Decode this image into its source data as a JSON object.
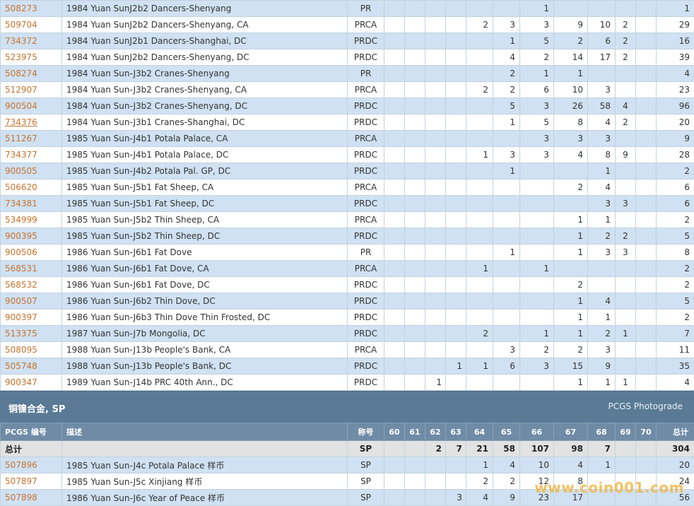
{
  "rows_top": [
    {
      "id": "508273",
      "desc": "1984 Yuan SunJ2b2 Dancers-Shenyang",
      "des": "PR",
      "c60": "",
      "c61": "",
      "c62": "",
      "c63": "",
      "c64": "",
      "c65": "",
      "c66": "1",
      "c67": "",
      "c68": "",
      "c69": "",
      "c70": "",
      "tot": "1"
    },
    {
      "id": "509704",
      "desc": "1984 Yuan SunJ2b2 Dancers-Shenyang, CA",
      "des": "PRCA",
      "c60": "",
      "c61": "",
      "c62": "",
      "c63": "",
      "c64": "2",
      "c65": "3",
      "c66": "3",
      "c67": "9",
      "c68": "10",
      "c69": "2",
      "c70": "",
      "tot": "29"
    },
    {
      "id": "734372",
      "desc": "1984 Yuan SunJ2b1 Dancers-Shanghai, DC",
      "des": "PRDC",
      "c60": "",
      "c61": "",
      "c62": "",
      "c63": "",
      "c64": "",
      "c65": "1",
      "c66": "5",
      "c67": "2",
      "c68": "6",
      "c69": "2",
      "c70": "",
      "tot": "16"
    },
    {
      "id": "523975",
      "desc": "1984 Yuan SunJ2b2 Dancers-Shenyang, DC",
      "des": "PRDC",
      "c60": "",
      "c61": "",
      "c62": "",
      "c63": "",
      "c64": "",
      "c65": "4",
      "c66": "2",
      "c67": "14",
      "c68": "17",
      "c69": "2",
      "c70": "",
      "tot": "39"
    },
    {
      "id": "508274",
      "desc": "1984 Yuan Sun-J3b2 Cranes-Shenyang",
      "des": "PR",
      "c60": "",
      "c61": "",
      "c62": "",
      "c63": "",
      "c64": "",
      "c65": "2",
      "c66": "1",
      "c67": "1",
      "c68": "",
      "c69": "",
      "c70": "",
      "tot": "4"
    },
    {
      "id": "512907",
      "desc": "1984 Yuan Sun-J3b2 Cranes-Shenyang, CA",
      "des": "PRCA",
      "c60": "",
      "c61": "",
      "c62": "",
      "c63": "",
      "c64": "2",
      "c65": "2",
      "c66": "6",
      "c67": "10",
      "c68": "3",
      "c69": "",
      "c70": "",
      "tot": "23"
    },
    {
      "id": "900504",
      "desc": "1984 Yuan Sun-J3b2 Cranes-Shenyang, DC",
      "des": "PRDC",
      "c60": "",
      "c61": "",
      "c62": "",
      "c63": "",
      "c64": "",
      "c65": "5",
      "c66": "3",
      "c67": "26",
      "c68": "58",
      "c69": "4",
      "c70": "",
      "tot": "96"
    },
    {
      "id": "734376",
      "desc": "1984 Yuan Sun-J3b1 Cranes-Shanghai, DC",
      "des": "PRDC",
      "c60": "",
      "c61": "",
      "c62": "",
      "c63": "",
      "c64": "",
      "c65": "1",
      "c66": "5",
      "c67": "8",
      "c68": "4",
      "c69": "2",
      "c70": "",
      "tot": "20",
      "underline": true
    },
    {
      "id": "511267",
      "desc": "1985 Yuan Sun-J4b1 Potala Palace, CA",
      "des": "PRCA",
      "c60": "",
      "c61": "",
      "c62": "",
      "c63": "",
      "c64": "",
      "c65": "",
      "c66": "3",
      "c67": "3",
      "c68": "3",
      "c69": "",
      "c70": "",
      "tot": "9"
    },
    {
      "id": "734377",
      "desc": "1985 Yuan Sun-J4b1 Potala Palace, DC",
      "des": "PRDC",
      "c60": "",
      "c61": "",
      "c62": "",
      "c63": "",
      "c64": "1",
      "c65": "3",
      "c66": "3",
      "c67": "4",
      "c68": "8",
      "c69": "9",
      "c70": "",
      "tot": "28"
    },
    {
      "id": "900505",
      "desc": "1985 Yuan Sun-J4b2 Potala Pal. GP, DC",
      "des": "PRDC",
      "c60": "",
      "c61": "",
      "c62": "",
      "c63": "",
      "c64": "",
      "c65": "1",
      "c66": "",
      "c67": "",
      "c68": "1",
      "c69": "",
      "c70": "",
      "tot": "2"
    },
    {
      "id": "506620",
      "desc": "1985 Yuan Sun-J5b1 Fat Sheep, CA",
      "des": "PRCA",
      "c60": "",
      "c61": "",
      "c62": "",
      "c63": "",
      "c64": "",
      "c65": "",
      "c66": "",
      "c67": "2",
      "c68": "4",
      "c69": "",
      "c70": "",
      "tot": "6"
    },
    {
      "id": "734381",
      "desc": "1985 Yuan Sun-J5b1 Fat Sheep, DC",
      "des": "PRDC",
      "c60": "",
      "c61": "",
      "c62": "",
      "c63": "",
      "c64": "",
      "c65": "",
      "c66": "",
      "c67": "",
      "c68": "3",
      "c69": "3",
      "c70": "",
      "tot": "6"
    },
    {
      "id": "534999",
      "desc": "1985 Yuan Sun-J5b2 Thin Sheep, CA",
      "des": "PRCA",
      "c60": "",
      "c61": "",
      "c62": "",
      "c63": "",
      "c64": "",
      "c65": "",
      "c66": "",
      "c67": "1",
      "c68": "1",
      "c69": "",
      "c70": "",
      "tot": "2"
    },
    {
      "id": "900395",
      "desc": "1985 Yuan Sun-J5b2 Thin Sheep, DC",
      "des": "PRDC",
      "c60": "",
      "c61": "",
      "c62": "",
      "c63": "",
      "c64": "",
      "c65": "",
      "c66": "",
      "c67": "1",
      "c68": "2",
      "c69": "2",
      "c70": "",
      "tot": "5"
    },
    {
      "id": "900506",
      "desc": "1986 Yuan Sun-J6b1 Fat Dove",
      "des": "PR",
      "c60": "",
      "c61": "",
      "c62": "",
      "c63": "",
      "c64": "",
      "c65": "1",
      "c66": "",
      "c67": "1",
      "c68": "3",
      "c69": "3",
      "c70": "",
      "tot": "8"
    },
    {
      "id": "568531",
      "desc": "1986 Yuan Sun-J6b1 Fat Dove, CA",
      "des": "PRCA",
      "c60": "",
      "c61": "",
      "c62": "",
      "c63": "",
      "c64": "1",
      "c65": "",
      "c66": "1",
      "c67": "",
      "c68": "",
      "c69": "",
      "c70": "",
      "tot": "2"
    },
    {
      "id": "568532",
      "desc": "1986 Yuan Sun-J6b1 Fat Dove, DC",
      "des": "PRDC",
      "c60": "",
      "c61": "",
      "c62": "",
      "c63": "",
      "c64": "",
      "c65": "",
      "c66": "",
      "c67": "2",
      "c68": "",
      "c69": "",
      "c70": "",
      "tot": "2"
    },
    {
      "id": "900507",
      "desc": "1986 Yuan Sun-J6b2 Thin Dove, DC",
      "des": "PRDC",
      "c60": "",
      "c61": "",
      "c62": "",
      "c63": "",
      "c64": "",
      "c65": "",
      "c66": "",
      "c67": "1",
      "c68": "4",
      "c69": "",
      "c70": "",
      "tot": "5"
    },
    {
      "id": "900397",
      "desc": "1986 Yuan Sun-J6b3 Thin Dove Thin Frosted, DC",
      "des": "PRDC",
      "c60": "",
      "c61": "",
      "c62": "",
      "c63": "",
      "c64": "",
      "c65": "",
      "c66": "",
      "c67": "1",
      "c68": "1",
      "c69": "",
      "c70": "",
      "tot": "2"
    },
    {
      "id": "513375",
      "desc": "1987 Yuan Sun-J7b Mongolia, DC",
      "des": "PRDC",
      "c60": "",
      "c61": "",
      "c62": "",
      "c63": "",
      "c64": "2",
      "c65": "",
      "c66": "1",
      "c67": "1",
      "c68": "2",
      "c69": "1",
      "c70": "",
      "tot": "7"
    },
    {
      "id": "508095",
      "desc": "1988 Yuan Sun-J13b People's Bank, CA",
      "des": "PRCA",
      "c60": "",
      "c61": "",
      "c62": "",
      "c63": "",
      "c64": "",
      "c65": "3",
      "c66": "2",
      "c67": "2",
      "c68": "3",
      "c69": "",
      "c70": "",
      "tot": "11"
    },
    {
      "id": "505748",
      "desc": "1988 Yuan Sun-J13b People's Bank, DC",
      "des": "PRDC",
      "c60": "",
      "c61": "",
      "c62": "",
      "c63": "1",
      "c64": "1",
      "c65": "6",
      "c66": "3",
      "c67": "15",
      "c68": "9",
      "c69": "",
      "c70": "",
      "tot": "35"
    },
    {
      "id": "900347",
      "desc": "1989 Yuan Sun-J14b PRC 40th Ann., DC",
      "des": "PRDC",
      "c60": "",
      "c61": "",
      "c62": "1",
      "c63": "",
      "c64": "",
      "c65": "",
      "c66": "",
      "c67": "1",
      "c68": "1",
      "c69": "1",
      "c70": "",
      "tot": "4"
    }
  ],
  "section": {
    "title": "铜镍合金, SP",
    "link": "PCGS Photograde"
  },
  "header": {
    "id": "PCGS 编号",
    "desc": "描述",
    "des": "称号",
    "c60": "60",
    "c61": "61",
    "c62": "62",
    "c63": "63",
    "c64": "64",
    "c65": "65",
    "c66": "66",
    "c67": "67",
    "c68": "68",
    "c69": "69",
    "c70": "70",
    "tot": "总计"
  },
  "total_row": {
    "id": "总计",
    "desc": "",
    "des": "SP",
    "c60": "",
    "c61": "",
    "c62": "2",
    "c63": "7",
    "c64": "21",
    "c65": "58",
    "c66": "107",
    "c67": "98",
    "c68": "7",
    "c69": "",
    "c70": "",
    "tot": "304"
  },
  "rows_sp": [
    {
      "id": "507896",
      "desc": "1985 Yuan Sun-J4c Potala Palace 样币",
      "des": "SP",
      "c60": "",
      "c61": "",
      "c62": "",
      "c63": "",
      "c64": "1",
      "c65": "4",
      "c66": "10",
      "c67": "4",
      "c68": "1",
      "c69": "",
      "c70": "",
      "tot": "20"
    },
    {
      "id": "507897",
      "desc": "1985 Yuan Sun-J5c Xinjiang 样币",
      "des": "SP",
      "c60": "",
      "c61": "",
      "c62": "",
      "c63": "",
      "c64": "2",
      "c65": "2",
      "c66": "12",
      "c67": "8",
      "c68": "",
      "c69": "",
      "c70": "",
      "tot": "24"
    },
    {
      "id": "507898",
      "desc": "1986 Yuan Sun-J6c Year of Peace 样币",
      "des": "SP",
      "c60": "",
      "c61": "",
      "c62": "",
      "c63": "3",
      "c64": "4",
      "c65": "9",
      "c66": "23",
      "c67": "17",
      "c68": "",
      "c69": "",
      "c70": "",
      "tot": "56"
    }
  ],
  "watermark": "www.coin001.com"
}
